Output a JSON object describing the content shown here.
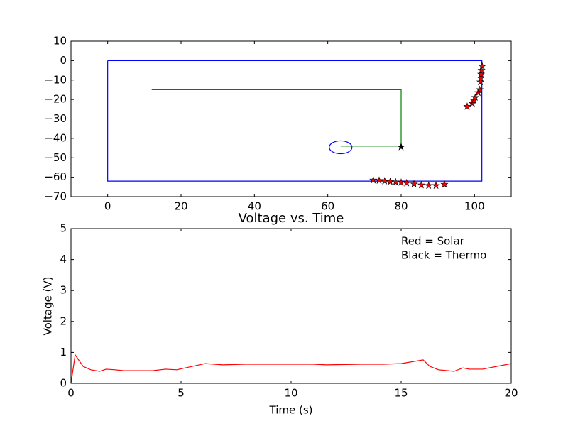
{
  "chart_data": [
    {
      "type": "line",
      "xlim": [
        -10,
        110
      ],
      "ylim": [
        -70,
        10
      ],
      "xticks": [
        0,
        20,
        40,
        60,
        80,
        100
      ],
      "yticks": [
        10,
        0,
        {
          "value": -10,
          "label": "−10"
        },
        {
          "value": -20,
          "label": "−20"
        },
        {
          "value": -30,
          "label": "−30"
        },
        {
          "value": -40,
          "label": "−40"
        },
        {
          "value": -50,
          "label": "−50"
        },
        {
          "value": -60,
          "label": "−60"
        },
        {
          "value": -70,
          "label": "−70"
        }
      ],
      "series": [
        {
          "color": "#0000ff",
          "line": true,
          "x": [
            0,
            102,
            102,
            0,
            0
          ],
          "values": [
            0,
            0,
            -62,
            -62,
            0
          ]
        },
        {
          "color": "#008000",
          "line": true,
          "x": [
            12,
            80,
            80,
            63.5
          ],
          "values": [
            -15,
            -15,
            -44,
            -44
          ]
        },
        {
          "color": "#ff0000",
          "line": false,
          "marker": "star",
          "x": [
            72.4,
            74,
            75.5,
            77,
            78.5,
            80,
            81.5,
            83.5,
            85.5,
            87.5,
            89.5,
            91.8,
            98,
            99.4,
            99.8,
            100.2,
            101,
            101.4,
            101.6,
            101.7,
            101.8,
            101.9,
            102.1
          ],
          "values": [
            -61.5,
            -61.7,
            -62,
            -62.3,
            -62.5,
            -62.7,
            -63,
            -63.5,
            -64,
            -64.3,
            -64.3,
            -63.7,
            -23.6,
            -22,
            -20.5,
            -19,
            -16.5,
            -15,
            -11,
            -9,
            -7,
            -5,
            -2.9
          ]
        },
        {
          "color": "#000000",
          "line": false,
          "marker": "star",
          "x": [
            80
          ],
          "values": [
            -44.4
          ]
        }
      ],
      "shapes": [
        {
          "type": "ellipse",
          "color": "#0000ff",
          "center": [
            63.5,
            -44.6
          ],
          "width": 6.2,
          "height": 6.6
        }
      ]
    },
    {
      "type": "line",
      "title": "Voltage vs. Time",
      "xlabel": "Time (s)",
      "ylabel": "Voltage (V)",
      "annotations": [
        "Red = Solar",
        "Black = Thermo"
      ],
      "xlim": [
        0,
        20
      ],
      "ylim": [
        0,
        5
      ],
      "xticks": [
        0,
        5,
        10,
        15,
        20
      ],
      "yticks": [
        0,
        1,
        2,
        3,
        4,
        5
      ],
      "series": [
        {
          "color": "#ff0000",
          "line": true,
          "x": [
            0,
            0.19,
            0.55,
            0.9,
            1.3,
            1.6,
            2.0,
            2.4,
            3.1,
            3.7,
            4.3,
            4.8,
            6.1,
            6.9,
            7.9,
            11,
            11.6,
            13.2,
            14.2,
            15,
            16,
            16.3,
            16.7,
            17.4,
            17.8,
            18.1,
            18.7,
            20
          ],
          "values": [
            0,
            0.92,
            0.55,
            0.44,
            0.39,
            0.46,
            0.44,
            0.41,
            0.41,
            0.41,
            0.46,
            0.44,
            0.64,
            0.6,
            0.62,
            0.62,
            0.6,
            0.62,
            0.62,
            0.64,
            0.76,
            0.55,
            0.44,
            0.39,
            0.5,
            0.46,
            0.46,
            0.64
          ]
        }
      ]
    }
  ]
}
